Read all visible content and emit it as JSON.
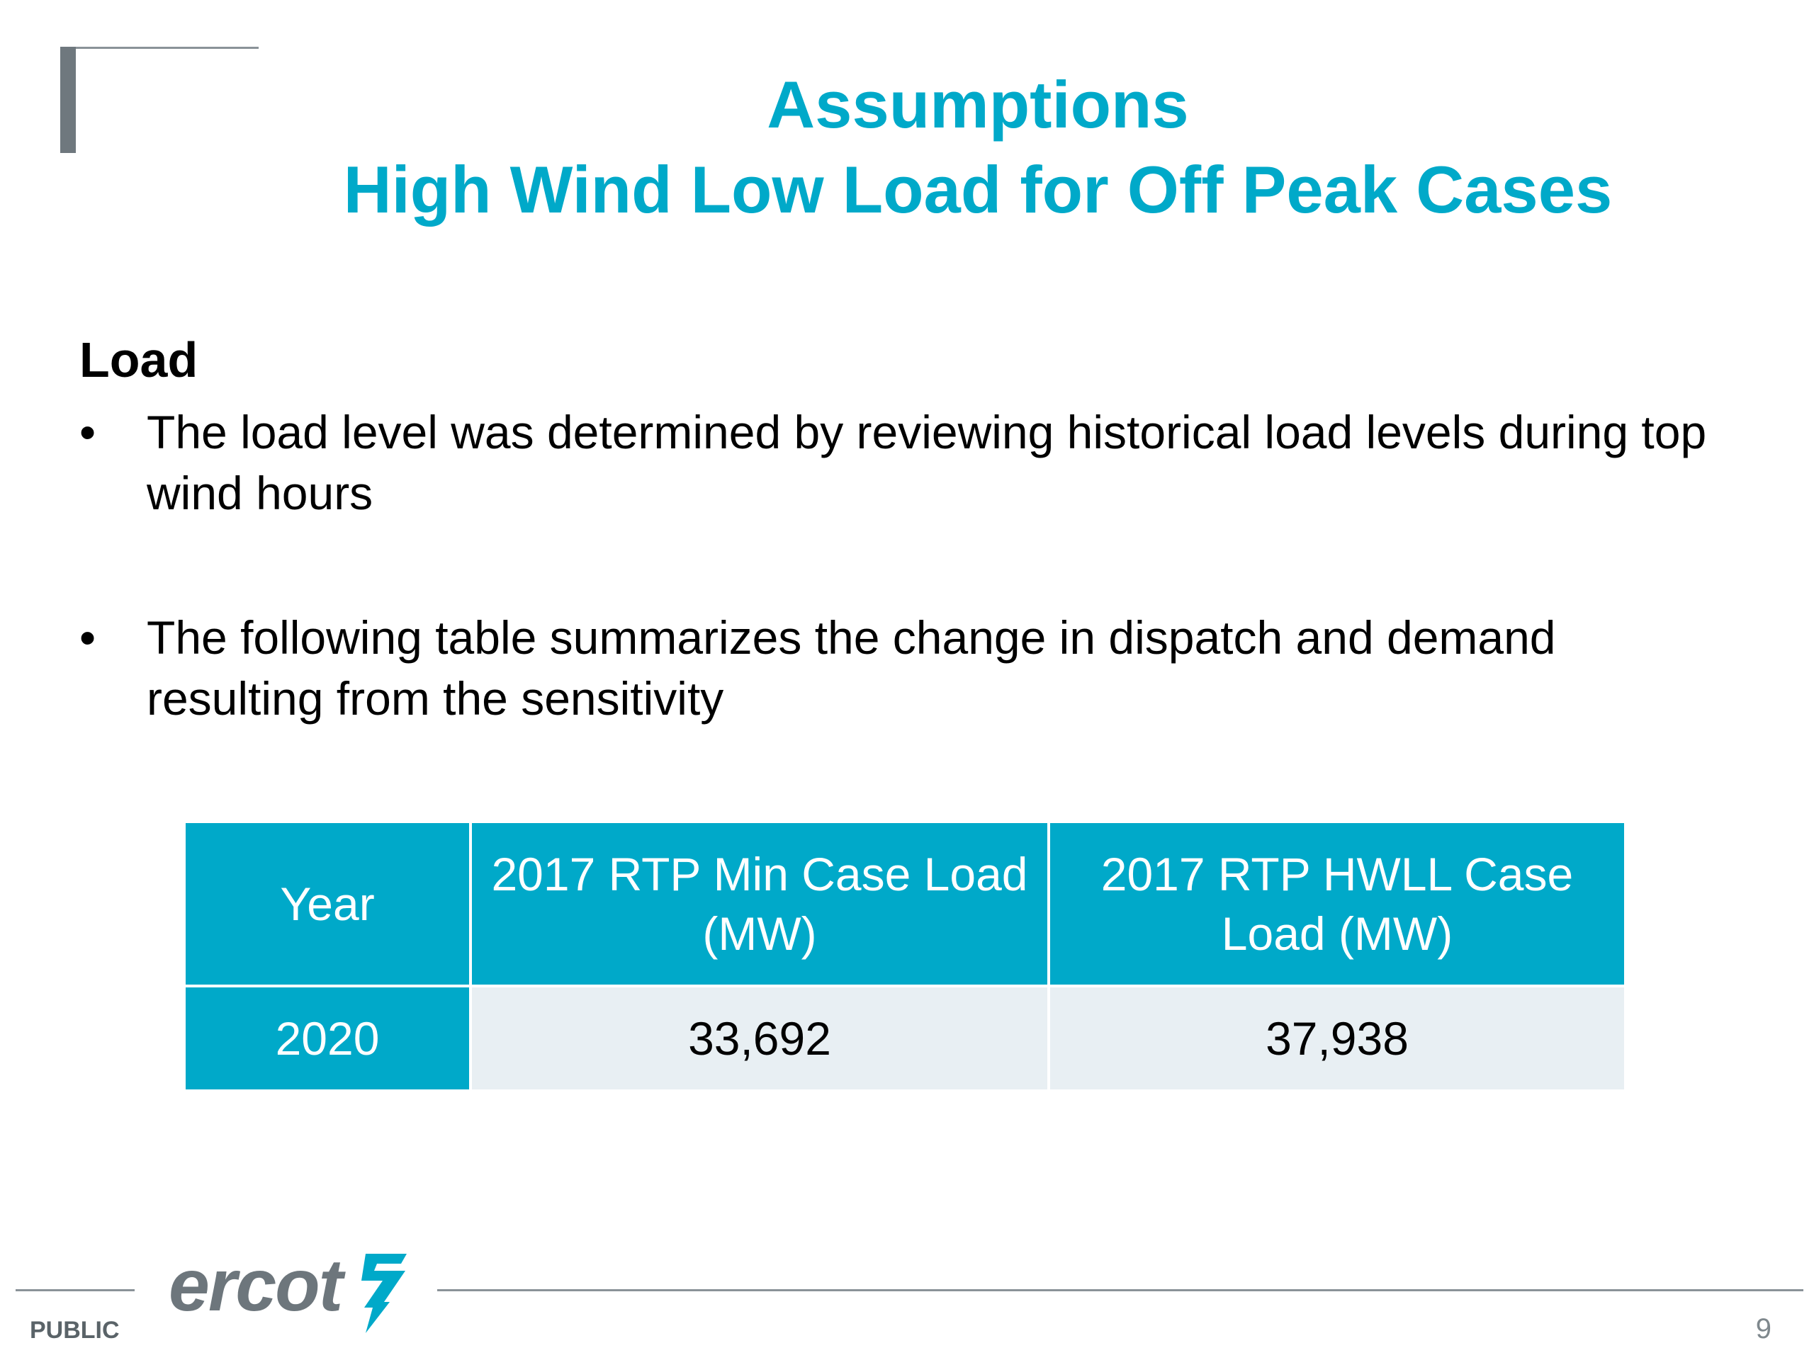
{
  "header": {
    "title_line1": "Assumptions",
    "title_line2": "High Wind Low Load for Off Peak Cases"
  },
  "content": {
    "section_heading": "Load",
    "bullets": [
      {
        "marker": "•",
        "text": "The load level was determined by reviewing historical load levels during top wind hours"
      },
      {
        "marker": "•",
        "text": "The following table summarizes the change in dispatch and demand resulting from the sensitivity"
      }
    ]
  },
  "table": {
    "headers": [
      "Year",
      "2017 RTP Min Case Load (MW)",
      "2017 RTP HWLL Case Load (MW)"
    ],
    "rows": [
      [
        "2020",
        "33,692",
        "37,938"
      ]
    ]
  },
  "footer": {
    "logo_text": "ercot",
    "classification": "PUBLIC",
    "page_number": "9"
  },
  "colors": {
    "accent": "#00a9c9",
    "table_body": "#e8eff3",
    "bracket": "#6f787e",
    "logo": "#6d767c"
  },
  "icons": {
    "logo_mark": "ercot-bolt-icon"
  }
}
